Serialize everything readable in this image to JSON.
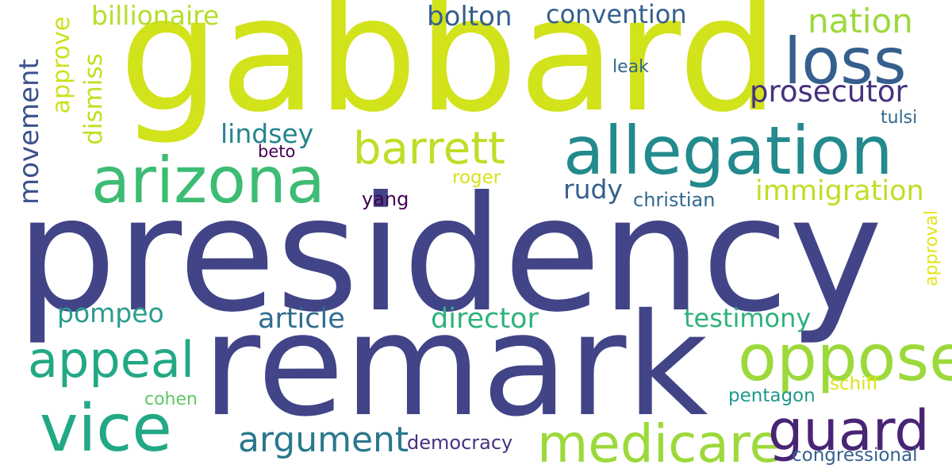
{
  "words": {
    "gabbard": {
      "text": "gabbard",
      "color": "#d2e21b"
    },
    "presidency": {
      "text": "presidency",
      "color": "#414487"
    },
    "remark": {
      "text": "remark",
      "color": "#414487"
    },
    "allegation": {
      "text": "allegation",
      "color": "#238a8d"
    },
    "arizona": {
      "text": "arizona",
      "color": "#3dbc74"
    },
    "loss": {
      "text": "loss",
      "color": "#355f8d"
    },
    "oppose": {
      "text": "oppose",
      "color": "#9cd93b"
    },
    "vice": {
      "text": "vice",
      "color": "#22a884"
    },
    "medicare": {
      "text": "medicare",
      "color": "#9cd93b"
    },
    "guard": {
      "text": "guard",
      "color": "#482475"
    },
    "appeal": {
      "text": "appeal",
      "color": "#22a884"
    },
    "barrett": {
      "text": "barrett",
      "color": "#bddf26"
    },
    "argument": {
      "text": "argument",
      "color": "#2a788e"
    },
    "nation": {
      "text": "nation",
      "color": "#9cd93b"
    },
    "billionaire": {
      "text": "billionaire",
      "color": "#b5de2b"
    },
    "bolton": {
      "text": "bolton",
      "color": "#355f8d"
    },
    "convention": {
      "text": "convention",
      "color": "#355f8d"
    },
    "prosecutor": {
      "text": "prosecutor",
      "color": "#46327e"
    },
    "immigration": {
      "text": "immigration",
      "color": "#bddf26"
    },
    "director": {
      "text": "director",
      "color": "#2db27d"
    },
    "article": {
      "text": "article",
      "color": "#2f6c8e"
    },
    "testimony": {
      "text": "testimony",
      "color": "#2db27d"
    },
    "pompeo": {
      "text": "pompeo",
      "color": "#2a9d8f"
    },
    "lindsey": {
      "text": "lindsey",
      "color": "#25858e"
    },
    "rudy": {
      "text": "rudy",
      "color": "#355f8d"
    },
    "movement": {
      "text": "movement",
      "color": "#3b528b"
    },
    "approve": {
      "text": "approve",
      "color": "#cde11d"
    },
    "dismiss": {
      "text": "dismiss",
      "color": "#c2df23"
    },
    "leak": {
      "text": "leak",
      "color": "#31688e"
    },
    "tulsi": {
      "text": "tulsi",
      "color": "#31688e"
    },
    "beto": {
      "text": "beto",
      "color": "#440154"
    },
    "yang": {
      "text": "yang",
      "color": "#440154"
    },
    "roger": {
      "text": "roger",
      "color": "#d8e219"
    },
    "christian": {
      "text": "christian",
      "color": "#31688e"
    },
    "approval": {
      "text": "approval",
      "color": "#e5e419"
    },
    "cohen": {
      "text": "cohen",
      "color": "#5ec962"
    },
    "pentagon": {
      "text": "pentagon",
      "color": "#1f988b"
    },
    "schiff": {
      "text": "schiff",
      "color": "#dde318"
    },
    "democracy": {
      "text": "democracy",
      "color": "#46327e"
    },
    "congressional": {
      "text": "congressional",
      "color": "#355f8d"
    }
  }
}
